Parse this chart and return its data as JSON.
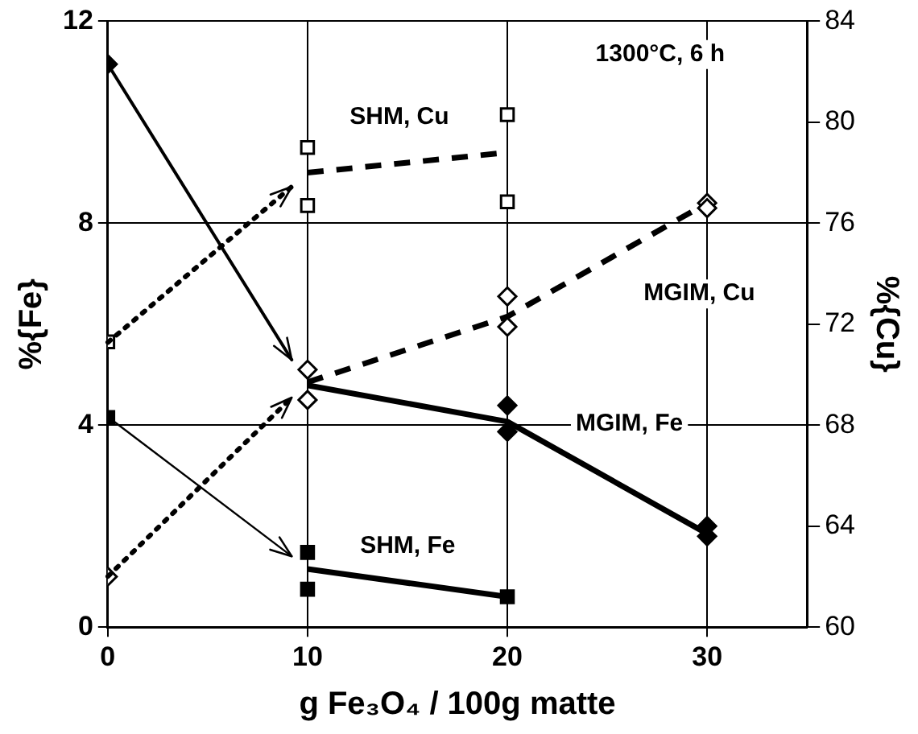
{
  "chart_data": {
    "type": "scatter",
    "xlabel": "g Fe₃O₄ / 100g matte",
    "ylabel": "%{Fe}",
    "y2label": "%{Cu}",
    "xlim": [
      0,
      35
    ],
    "xticks": [
      0,
      10,
      20,
      30
    ],
    "ylim": [
      0,
      12
    ],
    "yticks": [
      0,
      4,
      8,
      12
    ],
    "y2lim": [
      60,
      84
    ],
    "y2ticks": [
      60,
      64,
      68,
      72,
      76,
      80,
      84
    ],
    "grid": true,
    "series": [
      {
        "type": "scatter",
        "color": "#000000",
        "marker": "diamond",
        "x": [
          0,
          20,
          20,
          30,
          30
        ],
        "values": [
          11.15,
          4.39,
          3.87,
          2.0,
          1.8
        ]
      },
      {
        "type": "line",
        "color": "#000000",
        "line_style": "solid",
        "x": [
          10,
          20,
          30
        ],
        "values": [
          4.79,
          4.07,
          1.85
        ]
      },
      {
        "type": "scatter",
        "color": "#000000",
        "marker": "square",
        "x": [
          0,
          10,
          10,
          20
        ],
        "values": [
          4.15,
          1.48,
          0.75,
          0.6
        ]
      },
      {
        "type": "line",
        "color": "#000000",
        "line_style": "solid",
        "x": [
          10,
          20
        ],
        "values": [
          1.15,
          0.6
        ]
      },
      {
        "type": "scatter",
        "color": "#000000",
        "marker": "square",
        "axis": "y2",
        "x": [
          0,
          10,
          10,
          20,
          20
        ],
        "values": [
          71.3,
          79.0,
          76.7,
          80.3,
          76.85
        ]
      },
      {
        "type": "line",
        "color": "#000000",
        "line_style": "dashed",
        "axis": "y2",
        "x": [
          10,
          20
        ],
        "values": [
          78.0,
          78.8
        ]
      },
      {
        "type": "scatter",
        "color": "#000000",
        "marker": "diamond",
        "axis": "y2",
        "x": [
          0,
          10,
          10,
          20,
          20,
          30,
          30
        ],
        "values": [
          62.0,
          70.2,
          69.0,
          73.1,
          71.9,
          76.8,
          76.6
        ]
      },
      {
        "type": "line",
        "color": "#000000",
        "line_style": "dashed",
        "axis": "y2",
        "x": [
          10,
          20,
          30
        ],
        "values": [
          69.7,
          72.3,
          76.8
        ]
      }
    ],
    "annotations": [
      "1300°C, 6 h",
      "SHM, Cu",
      "MGIM, Cu",
      "MGIM, Fe",
      "SHM, Fe"
    ]
  }
}
